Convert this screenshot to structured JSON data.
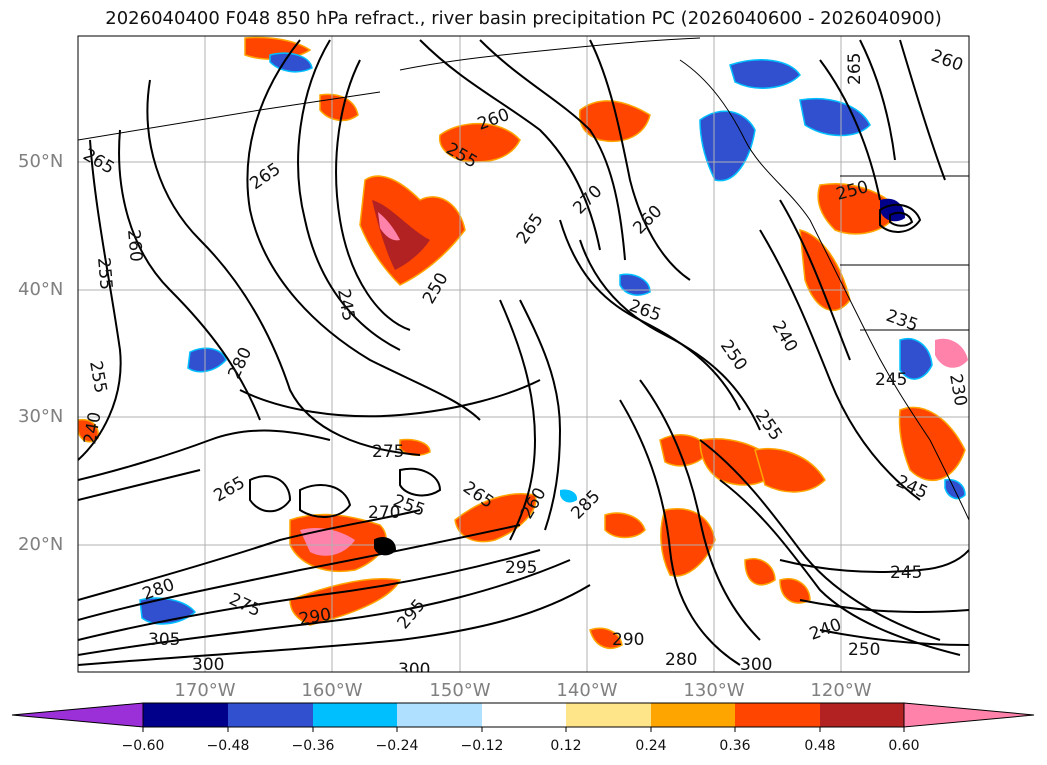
{
  "title": "2026040400 F048 850 hPa refract., river basin precipitation PC (2026040600 - 2026040900)",
  "map": {
    "lat_labels": [
      "50°N",
      "40°N",
      "30°N",
      "20°N"
    ],
    "lon_labels": [
      "170°W",
      "160°W",
      "150°W",
      "140°W",
      "130°W",
      "120°W"
    ],
    "contour_labels": [
      "265",
      "260",
      "255",
      "265",
      "245",
      "250",
      "265",
      "270",
      "260",
      "265",
      "260",
      "265",
      "255",
      "260",
      "280",
      "255",
      "240",
      "250",
      "250",
      "255",
      "275",
      "240",
      "245",
      "260",
      "285",
      "265",
      "295",
      "255",
      "270",
      "265",
      "275",
      "280",
      "290",
      "295",
      "305",
      "300",
      "300",
      "280",
      "290",
      "245",
      "250",
      "240",
      "235",
      "245",
      "300",
      "230"
    ]
  },
  "colorbar": {
    "ticks": [
      "−0.60",
      "−0.48",
      "−0.36",
      "−0.24",
      "−0.12",
      "0.12",
      "0.24",
      "0.36",
      "0.48",
      "0.60"
    ],
    "colors": [
      "#9b30d9",
      "#00008b",
      "#3050d0",
      "#00bfff",
      "#b0e0ff",
      "#ffffff",
      "#ffe58a",
      "#ffa500",
      "#ff4500",
      "#b22222",
      "#ff82ab",
      "#ff82ab"
    ]
  }
}
